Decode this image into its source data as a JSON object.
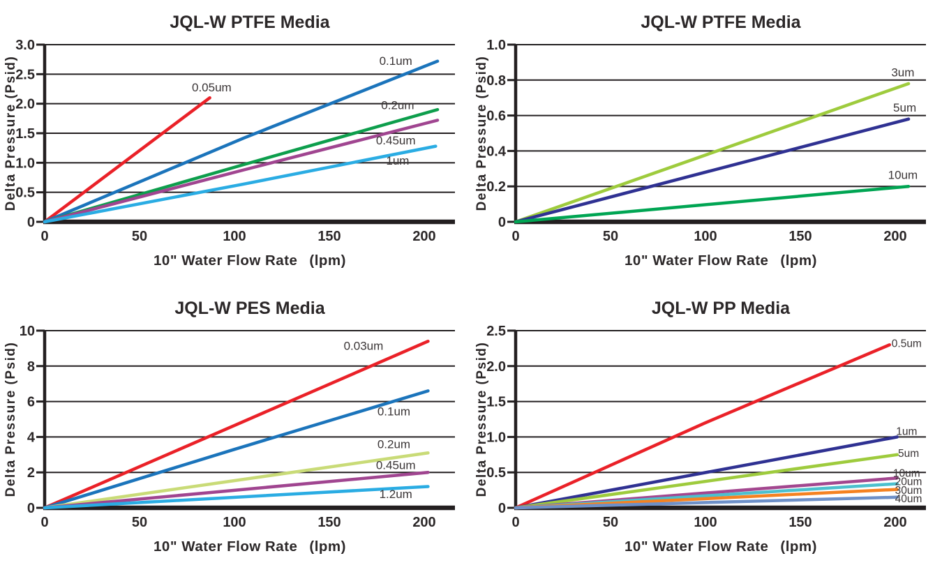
{
  "page": {
    "background": "#ffffff"
  },
  "colors": {
    "axis": "#231F20",
    "grid": "#231F20",
    "tick_text": "#2B2728",
    "series_label_text": "#3A3536",
    "red": "#EA2128",
    "blue": "#1B74BB",
    "green": "#0D9E4C",
    "purple": "#A04590",
    "cyan": "#2AACE3",
    "yellow_green": "#9ECB3D",
    "pale_yellow_green": "#C9DB77",
    "navy": "#2F3192",
    "green2": "#00A553",
    "magenta": "#A3478F",
    "teal": "#4CC0CE",
    "orange": "#F58221",
    "steel_blue": "#6E90C8"
  },
  "chart_data": [
    {
      "type": "line",
      "title": "JQL-W PTFE Media",
      "xlabel": "10\" Water Flow Rate  (lpm)",
      "ylabel": "Delta Pressure (Psid)",
      "xlim": [
        0,
        216
      ],
      "ylim": [
        0,
        3.0
      ],
      "grid": "horizontal",
      "legend": "inline-labels",
      "label_size": 17,
      "xticks": [
        0,
        50,
        100,
        150,
        200
      ],
      "yticks": [
        {
          "value": 3.0,
          "label": "3.0"
        },
        {
          "value": 2.5,
          "label": "2.5"
        },
        {
          "value": 2.0,
          "label": "2.0"
        },
        {
          "value": 1.5,
          "label": "1.5"
        },
        {
          "value": 1.0,
          "label": "1.0"
        },
        {
          "value": 0.5,
          "label": "0.5"
        },
        {
          "value": 0,
          "label": "0"
        }
      ],
      "series": [
        {
          "name": "0.05um",
          "color": "#EA2128",
          "points": [
            [
              0,
              0
            ],
            [
              87,
              2.1
            ]
          ],
          "label_at": [
            88,
            2.28
          ]
        },
        {
          "name": "0.1um",
          "color": "#1B74BB",
          "points": [
            [
              0,
              0
            ],
            [
              105,
              1.42
            ],
            [
              207,
              2.72
            ]
          ],
          "label_at": [
            185,
            2.73
          ]
        },
        {
          "name": "0.2um",
          "color": "#0D9E4C",
          "points": [
            [
              0,
              0
            ],
            [
              105,
              0.97
            ],
            [
              207,
              1.9
            ]
          ],
          "label_at": [
            186,
            1.98
          ]
        },
        {
          "name": "0.45um",
          "color": "#A04590",
          "points": [
            [
              0,
              0
            ],
            [
              105,
              0.88
            ],
            [
              207,
              1.72
            ]
          ],
          "label_at": [
            185,
            1.38
          ]
        },
        {
          "name": "1um",
          "color": "#2AACE3",
          "points": [
            [
              0,
              0
            ],
            [
              105,
              0.64
            ],
            [
              206,
              1.28
            ]
          ],
          "label_at": [
            186,
            1.04
          ]
        }
      ]
    },
    {
      "type": "line",
      "title": "JQL-W PTFE Media",
      "xlabel": "10\" Water Flow Rate  (lpm)",
      "ylabel": "Delta Pressure (Psid)",
      "xlim": [
        0,
        216
      ],
      "ylim": [
        0,
        1.0
      ],
      "grid": "horizontal",
      "legend": "inline-labels",
      "label_size": 17,
      "xticks": [
        0,
        50,
        100,
        150,
        200
      ],
      "yticks": [
        {
          "value": 1.0,
          "label": "1.0"
        },
        {
          "value": 0.8,
          "label": "0.8"
        },
        {
          "value": 0.6,
          "label": "0.6"
        },
        {
          "value": 0.4,
          "label": "0.4"
        },
        {
          "value": 0.2,
          "label": "0.2"
        },
        {
          "value": 0,
          "label": "0"
        }
      ],
      "series": [
        {
          "name": "3um",
          "color": "#9ECB3D",
          "points": [
            [
              0,
              0
            ],
            [
              207,
              0.78
            ]
          ],
          "label_at": [
            204,
            0.845
          ]
        },
        {
          "name": "5um",
          "color": "#2F3192",
          "points": [
            [
              0,
              0
            ],
            [
              207,
              0.58
            ]
          ],
          "label_at": [
            205,
            0.645
          ]
        },
        {
          "name": "10um",
          "color": "#00A553",
          "points": [
            [
              0,
              0
            ],
            [
              207,
              0.2
            ]
          ],
          "label_at": [
            204,
            0.265
          ]
        }
      ]
    },
    {
      "type": "line",
      "title": "JQL-W PES Media",
      "xlabel": "10\" Water Flow Rate  (lpm)",
      "ylabel": "Delta Pressure (Psid)",
      "xlim": [
        0,
        216
      ],
      "ylim": [
        0,
        10
      ],
      "grid": "horizontal",
      "legend": "inline-labels",
      "label_size": 17,
      "xticks": [
        0,
        50,
        100,
        150,
        200
      ],
      "yticks": [
        {
          "value": 10,
          "label": "10"
        },
        {
          "value": 8,
          "label": "8"
        },
        {
          "value": 6,
          "label": "6"
        },
        {
          "value": 4,
          "label": "4"
        },
        {
          "value": 2,
          "label": "2"
        },
        {
          "value": 0,
          "label": "0"
        }
      ],
      "series": [
        {
          "name": "0.03um",
          "color": "#EA2128",
          "points": [
            [
              0,
              0
            ],
            [
              100,
              4.65
            ],
            [
              202,
              9.4
            ]
          ],
          "label_at": [
            168,
            9.15
          ]
        },
        {
          "name": "0.1um",
          "color": "#1B74BB",
          "points": [
            [
              0,
              0
            ],
            [
              100,
              3.3
            ],
            [
              202,
              6.6
            ]
          ],
          "label_at": [
            184,
            5.45
          ]
        },
        {
          "name": "0.2um",
          "color": "#C9DB77",
          "points": [
            [
              0,
              0
            ],
            [
              202,
              3.1
            ]
          ],
          "label_at": [
            184,
            3.6
          ]
        },
        {
          "name": "0.45um",
          "color": "#A04590",
          "points": [
            [
              0,
              0
            ],
            [
              202,
              2.0
            ]
          ],
          "label_at": [
            185,
            2.42
          ]
        },
        {
          "name": "1.2um",
          "color": "#2AACE3",
          "points": [
            [
              0,
              0
            ],
            [
              202,
              1.2
            ]
          ],
          "label_at": [
            185,
            0.78
          ]
        }
      ]
    },
    {
      "type": "line",
      "title": "JQL-W PP Media",
      "xlabel": "10\" Water Flow Rate  (lpm)",
      "ylabel": "Delta Pressure (Psid)",
      "xlim": [
        0,
        216
      ],
      "ylim": [
        0,
        2.5
      ],
      "grid": "horizontal",
      "legend": "inline-labels",
      "label_size": 15.5,
      "xticks": [
        0,
        50,
        100,
        150,
        200
      ],
      "yticks": [
        {
          "value": 2.5,
          "label": "2.5"
        },
        {
          "value": 2.0,
          "label": "2.0"
        },
        {
          "value": 1.5,
          "label": "1.5"
        },
        {
          "value": 1.0,
          "label": "1.0"
        },
        {
          "value": 0.5,
          "label": "0.5"
        },
        {
          "value": 0,
          "label": "0"
        }
      ],
      "series": [
        {
          "name": "0.5um",
          "color": "#EA2128",
          "points": [
            [
              0,
              0
            ],
            [
              100,
              1.2
            ],
            [
              197,
              2.3
            ]
          ],
          "label_at": [
            206,
            2.33
          ]
        },
        {
          "name": "1um",
          "color": "#2F3192",
          "points": [
            [
              0,
              0
            ],
            [
              201,
              1.0
            ]
          ],
          "label_at": [
            206,
            1.09
          ]
        },
        {
          "name": "5um",
          "color": "#9ECB3D",
          "points": [
            [
              0,
              0
            ],
            [
              201,
              0.75
            ]
          ],
          "label_at": [
            207,
            0.78
          ]
        },
        {
          "name": "10um",
          "color": "#A3478F",
          "points": [
            [
              0,
              0
            ],
            [
              201,
              0.42
            ]
          ],
          "label_at": [
            206,
            0.495
          ]
        },
        {
          "name": "20um",
          "color": "#4CC0CE",
          "points": [
            [
              0,
              0
            ],
            [
              201,
              0.34
            ]
          ],
          "label_at": [
            207,
            0.378
          ]
        },
        {
          "name": "30um",
          "color": "#F58221",
          "points": [
            [
              0,
              0
            ],
            [
              201,
              0.26
            ]
          ],
          "label_at": [
            207,
            0.258
          ]
        },
        {
          "name": "40um",
          "color": "#6E90C8",
          "points": [
            [
              0,
              0
            ],
            [
              201,
              0.15
            ]
          ],
          "label_at": [
            207,
            0.138
          ]
        }
      ]
    }
  ]
}
